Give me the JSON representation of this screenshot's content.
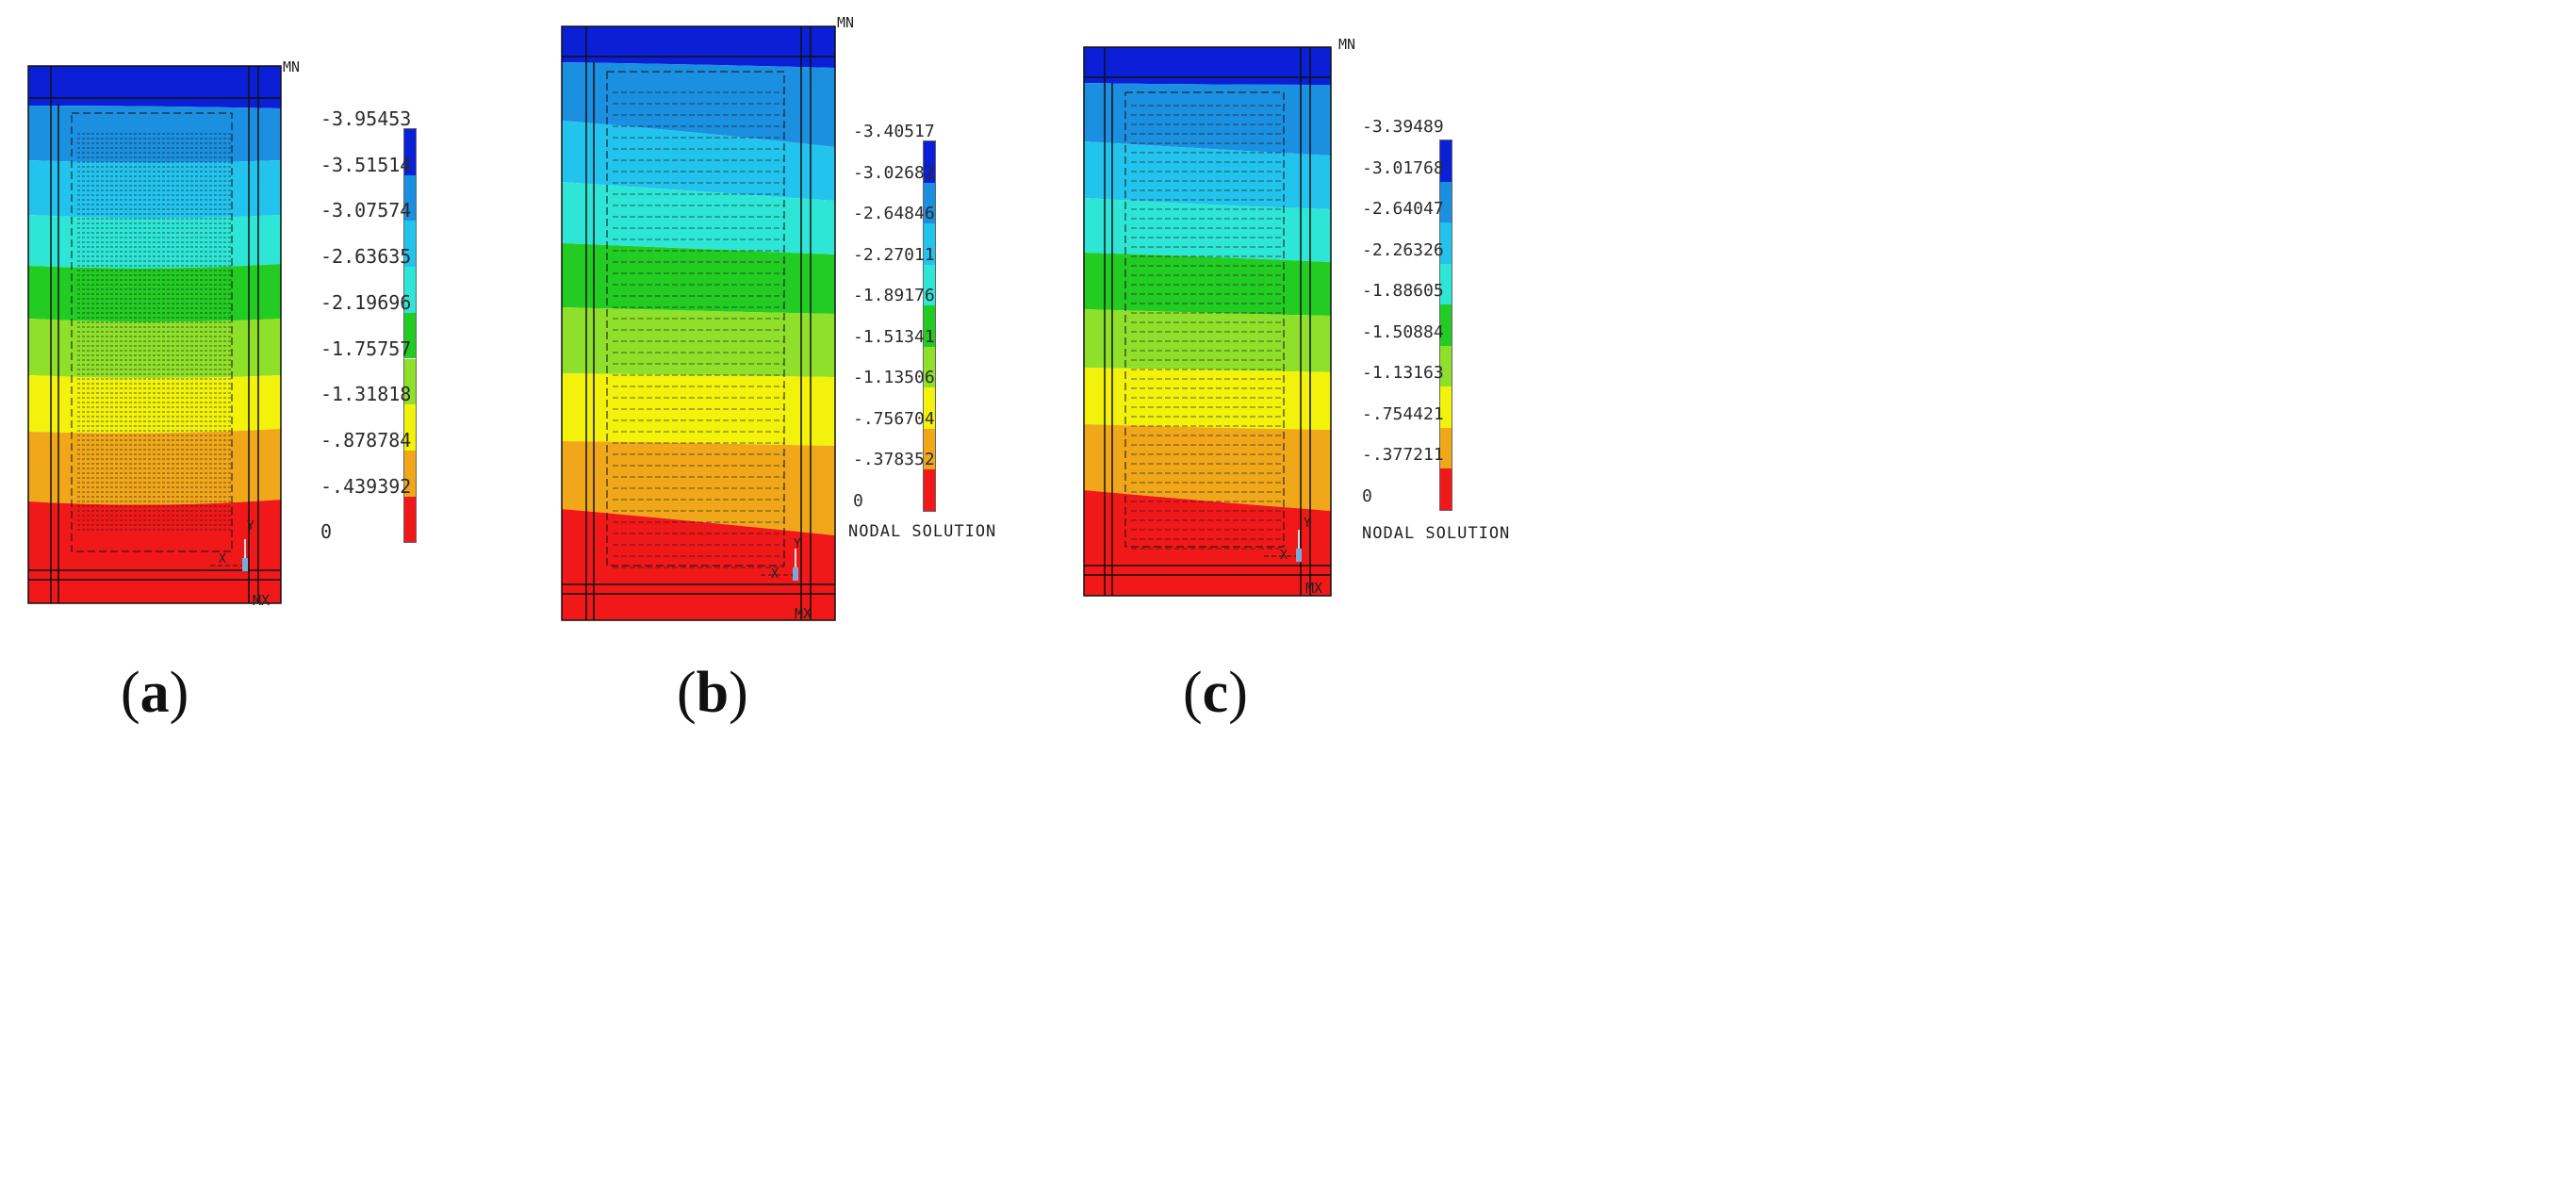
{
  "panels": [
    {
      "id": "a",
      "caption_letter": "a",
      "legend_values": [
        "-3.95453",
        "-3.51514",
        "-3.07574",
        "-2.63635",
        "-2.19696",
        "-1.75757",
        "-1.31818",
        "-.878784",
        "-.439392",
        "0"
      ],
      "nodal_label": "",
      "max_label": "MX",
      "min_label": "MN",
      "x_label": "X",
      "y_label": "Y"
    },
    {
      "id": "b",
      "caption_letter": "b",
      "legend_values": [
        "-3.40517",
        "-3.02682",
        "-2.64846",
        "-2.27011",
        "-1.89176",
        "-1.51341",
        "-1.13506",
        "-.756704",
        "-.378352",
        "0"
      ],
      "nodal_label": "NODAL SOLUTION",
      "max_label": "MX",
      "min_label": "MN",
      "x_label": "X",
      "y_label": "Y"
    },
    {
      "id": "c",
      "caption_letter": "c",
      "legend_values": [
        "-3.39489",
        "-3.01768",
        "-2.64047",
        "-2.26326",
        "-1.88605",
        "-1.50884",
        "-1.13163",
        "-.754421",
        "-.377211",
        "0"
      ],
      "nodal_label": "NODAL SOLUTION",
      "max_label": "MX",
      "min_label": "MN",
      "x_label": "X",
      "y_label": "Y"
    }
  ],
  "colors": {
    "bands_top_to_bottom": [
      "#0a1fd6",
      "#1b8fe0",
      "#22c4ee",
      "#2ee6d6",
      "#22cc22",
      "#8ee02a",
      "#f2f20a",
      "#f0a81a",
      "#f01818"
    ]
  },
  "caption_open": "(",
  "caption_close": ")"
}
